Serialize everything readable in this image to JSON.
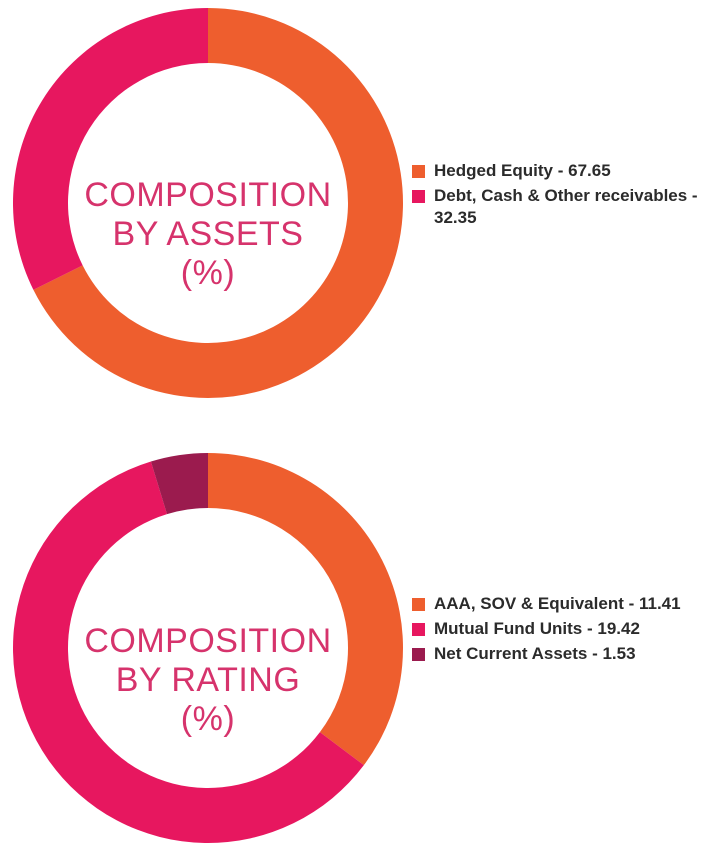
{
  "colors": {
    "orange": "#EE5E2E",
    "pink": "#E7175F",
    "maroon": "#9B1B4E",
    "title": "#D6336C"
  },
  "chart_data": [
    {
      "type": "pie",
      "donut": true,
      "title_lines": [
        "COMPOSITION",
        "BY ASSETS",
        "(%)"
      ],
      "slices": [
        {
          "label": "Hedged Equity - 67.65",
          "value": 67.65,
          "color": "#EE5E2E"
        },
        {
          "label": "Debt, Cash & Other receivables - 32.35",
          "value": 32.35,
          "color": "#E7175F"
        }
      ],
      "legend_position": "right"
    },
    {
      "type": "pie",
      "donut": true,
      "title_lines": [
        "COMPOSITION",
        "BY RATING",
        "(%)"
      ],
      "slices": [
        {
          "label": "AAA, SOV & Equivalent - 11.41",
          "value": 11.41,
          "color": "#EE5E2E"
        },
        {
          "label": "Mutual Fund Units - 19.42",
          "value": 19.42,
          "color": "#E7175F"
        },
        {
          "label": "Net Current Assets - 1.53",
          "value": 1.53,
          "color": "#9B1B4E"
        }
      ],
      "legend_position": "right"
    }
  ]
}
